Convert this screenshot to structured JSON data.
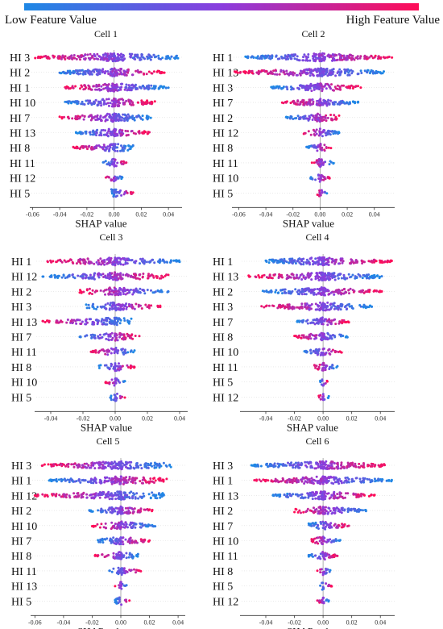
{
  "legend": {
    "low_label": "Low Feature Value",
    "high_label": "High Feature Value",
    "colors": {
      "low": "#1e88e5",
      "mid": "#8a3dde",
      "high": "#ff0d57"
    }
  },
  "chart_data": [
    {
      "type": "scatter",
      "title": "Cell 1",
      "xlabel": "SHAP value",
      "xlim": [
        -0.062,
        0.05
      ],
      "ticks": [
        -0.06,
        -0.04,
        -0.02,
        0.0,
        0.02,
        0.04
      ],
      "features": [
        {
          "name": "HI 3",
          "range": [
            -0.058,
            0.047
          ]
        },
        {
          "name": "HI 2",
          "range": [
            -0.04,
            0.037
          ]
        },
        {
          "name": "HI 1",
          "range": [
            -0.036,
            0.04
          ]
        },
        {
          "name": "HI 10",
          "range": [
            -0.036,
            0.03
          ]
        },
        {
          "name": "HI 7",
          "range": [
            -0.04,
            0.027
          ]
        },
        {
          "name": "HI 13",
          "range": [
            -0.028,
            0.026
          ]
        },
        {
          "name": "HI 8",
          "range": [
            -0.03,
            0.014
          ]
        },
        {
          "name": "HI 11",
          "range": [
            -0.008,
            0.009
          ]
        },
        {
          "name": "HI 12",
          "range": [
            -0.006,
            0.006
          ]
        },
        {
          "name": "HI 5",
          "range": [
            -0.002,
            0.014
          ]
        }
      ]
    },
    {
      "type": "scatter",
      "title": "Cell 2",
      "xlabel": "SHAP value",
      "xlim": [
        -0.065,
        0.055
      ],
      "ticks": [
        -0.06,
        -0.04,
        -0.02,
        0.0,
        0.02,
        0.04
      ],
      "features": [
        {
          "name": "HI 1",
          "range": [
            -0.055,
            0.053
          ]
        },
        {
          "name": "HI 13",
          "range": [
            -0.063,
            0.047
          ]
        },
        {
          "name": "HI 3",
          "range": [
            -0.036,
            0.03
          ]
        },
        {
          "name": "HI 7",
          "range": [
            -0.028,
            0.028
          ]
        },
        {
          "name": "HI 2",
          "range": [
            -0.025,
            0.014
          ]
        },
        {
          "name": "HI 12",
          "range": [
            -0.012,
            0.014
          ]
        },
        {
          "name": "HI 8",
          "range": [
            -0.01,
            0.008
          ]
        },
        {
          "name": "HI 11",
          "range": [
            -0.006,
            0.01
          ]
        },
        {
          "name": "HI 10",
          "range": [
            -0.007,
            0.007
          ]
        },
        {
          "name": "HI 5",
          "range": [
            -0.002,
            0.005
          ]
        }
      ]
    },
    {
      "type": "scatter",
      "title": "Cell 3",
      "xlabel": "SHAP value",
      "xlim": [
        -0.05,
        0.045
      ],
      "ticks": [
        -0.04,
        -0.02,
        0.0,
        0.02,
        0.04
      ],
      "features": [
        {
          "name": "HI 1",
          "range": [
            -0.042,
            0.04
          ]
        },
        {
          "name": "HI 12",
          "range": [
            -0.045,
            0.033
          ]
        },
        {
          "name": "HI 2",
          "range": [
            -0.022,
            0.033
          ]
        },
        {
          "name": "HI 3",
          "range": [
            -0.018,
            0.028
          ]
        },
        {
          "name": "HI 13",
          "range": [
            -0.045,
            0.01
          ]
        },
        {
          "name": "HI 7",
          "range": [
            -0.022,
            0.015
          ]
        },
        {
          "name": "HI 11",
          "range": [
            -0.015,
            0.012
          ]
        },
        {
          "name": "HI 8",
          "range": [
            -0.01,
            0.012
          ]
        },
        {
          "name": "HI 10",
          "range": [
            -0.006,
            0.006
          ]
        },
        {
          "name": "HI 5",
          "range": [
            -0.003,
            0.006
          ]
        }
      ]
    },
    {
      "type": "scatter",
      "title": "Cell 4",
      "xlabel": "SHAP value",
      "xlim": [
        -0.058,
        0.05
      ],
      "ticks": [
        -0.04,
        -0.02,
        0.0,
        0.02,
        0.04
      ],
      "features": [
        {
          "name": "HI 1",
          "range": [
            -0.04,
            0.048
          ]
        },
        {
          "name": "HI 13",
          "range": [
            -0.052,
            0.041
          ]
        },
        {
          "name": "HI 2",
          "range": [
            -0.042,
            0.041
          ]
        },
        {
          "name": "HI 3",
          "range": [
            -0.043,
            0.034
          ]
        },
        {
          "name": "HI 7",
          "range": [
            -0.018,
            0.018
          ]
        },
        {
          "name": "HI 8",
          "range": [
            -0.02,
            0.017
          ]
        },
        {
          "name": "HI 10",
          "range": [
            -0.013,
            0.013
          ]
        },
        {
          "name": "HI 11",
          "range": [
            -0.006,
            0.01
          ]
        },
        {
          "name": "HI 5",
          "range": [
            -0.002,
            0.003
          ]
        },
        {
          "name": "HI 12",
          "range": [
            -0.003,
            0.004
          ]
        }
      ]
    },
    {
      "type": "scatter",
      "title": "Cell 5",
      "xlabel": "SHAP value",
      "xlim": [
        -0.063,
        0.045
      ],
      "ticks": [
        -0.06,
        -0.04,
        -0.02,
        0.0,
        0.02,
        0.04
      ],
      "features": [
        {
          "name": "HI 3",
          "range": [
            -0.055,
            0.035
          ]
        },
        {
          "name": "HI 1",
          "range": [
            -0.05,
            0.032
          ]
        },
        {
          "name": "HI 12",
          "range": [
            -0.06,
            0.03
          ]
        },
        {
          "name": "HI 2",
          "range": [
            -0.022,
            0.022
          ]
        },
        {
          "name": "HI 10",
          "range": [
            -0.02,
            0.024
          ]
        },
        {
          "name": "HI 7",
          "range": [
            -0.016,
            0.02
          ]
        },
        {
          "name": "HI 8",
          "range": [
            -0.018,
            0.012
          ]
        },
        {
          "name": "HI 11",
          "range": [
            -0.008,
            0.014
          ]
        },
        {
          "name": "HI 13",
          "range": [
            -0.004,
            0.004
          ]
        },
        {
          "name": "HI 5",
          "range": [
            -0.004,
            0.006
          ]
        }
      ]
    },
    {
      "type": "scatter",
      "title": "Cell 6",
      "xlabel": "SHAP value",
      "xlim": [
        -0.058,
        0.05
      ],
      "ticks": [
        -0.04,
        -0.02,
        0.0,
        0.02,
        0.04
      ],
      "features": [
        {
          "name": "HI 3",
          "range": [
            -0.05,
            0.043
          ]
        },
        {
          "name": "HI 1",
          "range": [
            -0.048,
            0.048
          ]
        },
        {
          "name": "HI 13",
          "range": [
            -0.035,
            0.036
          ]
        },
        {
          "name": "HI 2",
          "range": [
            -0.02,
            0.03
          ]
        },
        {
          "name": "HI 7",
          "range": [
            -0.01,
            0.018
          ]
        },
        {
          "name": "HI 10",
          "range": [
            -0.008,
            0.012
          ]
        },
        {
          "name": "HI 11",
          "range": [
            -0.01,
            0.01
          ]
        },
        {
          "name": "HI 8",
          "range": [
            -0.004,
            0.005
          ]
        },
        {
          "name": "HI 5",
          "range": [
            -0.002,
            0.006
          ]
        },
        {
          "name": "HI 12",
          "range": [
            -0.004,
            0.004
          ]
        }
      ]
    }
  ]
}
